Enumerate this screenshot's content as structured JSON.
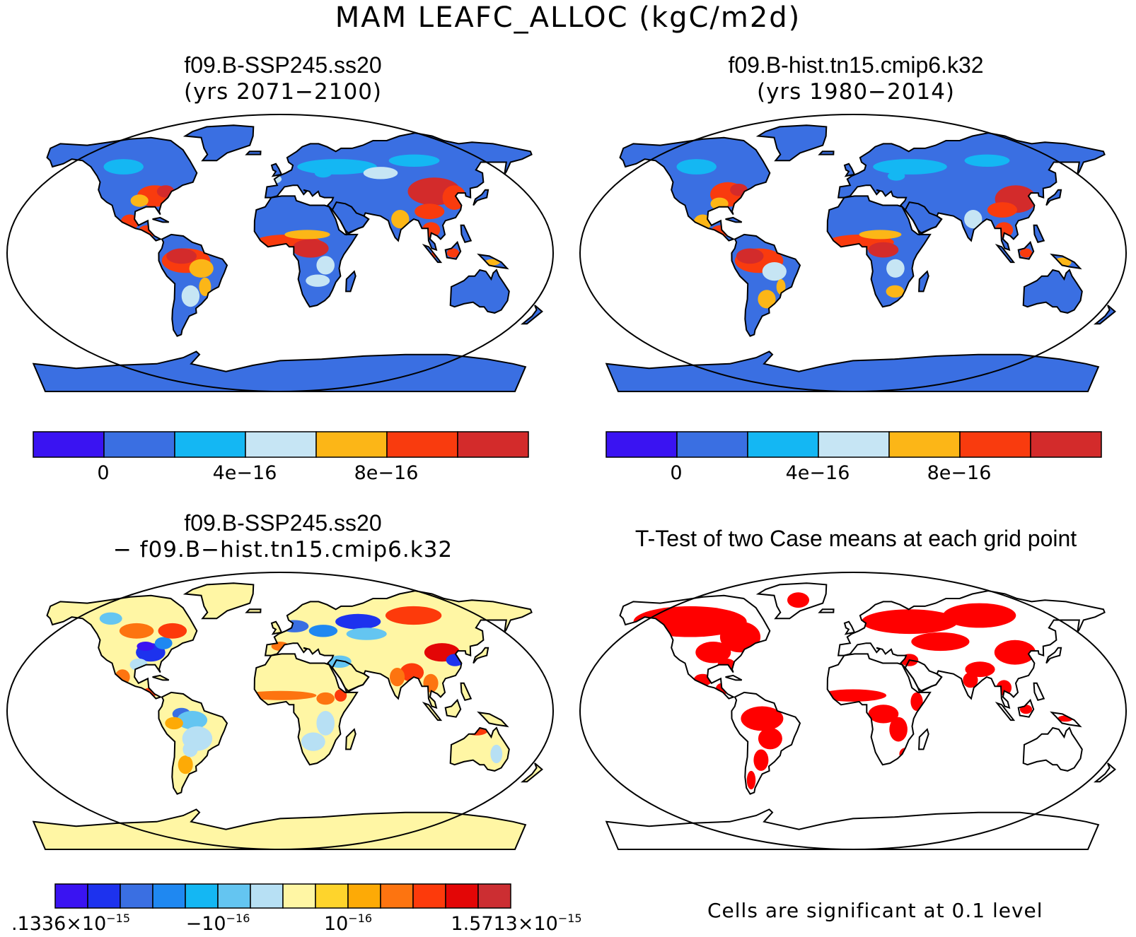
{
  "figure_title": "MAM LEAFC_ALLOC (kgC/m2d)",
  "panels": [
    {
      "title": "f09.B-SSP245.ss20",
      "subtitle": "(yrs 2071−2100)"
    },
    {
      "title": "f09.B-hist.tn15.cmip6.k32",
      "subtitle": "(yrs 1980−2014)"
    },
    {
      "title": "f09.B-SSP245.ss20",
      "subtitle": "− f09.B−hist.tn15.cmip6.k32"
    },
    {
      "title": "T-Test of two Case means at each grid point",
      "subtitle": ""
    }
  ],
  "colorbar_case": {
    "colors": [
      "#3a13f2",
      "#3a6fe2",
      "#14b7f3",
      "#c6e5f4",
      "#fcb617",
      "#f93b0e",
      "#d32b2b"
    ],
    "labels": [
      "0",
      "4e−16",
      "8e−16"
    ]
  },
  "colorbar_diff": {
    "colors": [
      "#3a13f2",
      "#1d32ee",
      "#3a6fe2",
      "#1f88f1",
      "#14b7f3",
      "#64c5f1",
      "#b7e0f4",
      "#fff6a4",
      "#fed42c",
      "#fdaa06",
      "#fd7410",
      "#fd3a0b",
      "#e30606",
      "#cc2e32"
    ],
    "labels": [
      {
        "base": ".1336×10",
        "exp": "−15"
      },
      {
        "base": "−10",
        "exp": "−16"
      },
      {
        "base": "10",
        "exp": "−16"
      },
      {
        "base": "1.5713×10",
        "exp": "−15"
      }
    ]
  },
  "ttest_color": "#ff0000",
  "significance_note": "Cells are significant at 0.1 level"
}
